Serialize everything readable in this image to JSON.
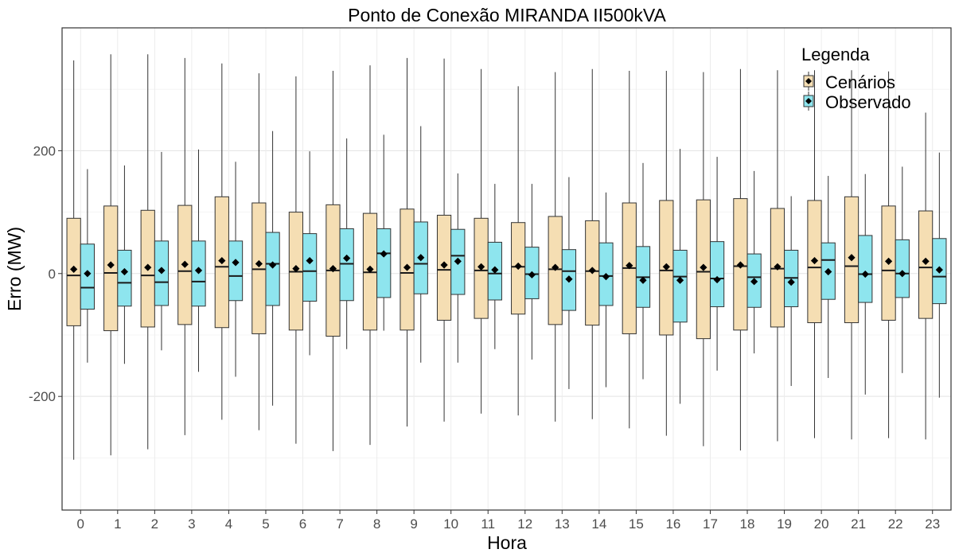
{
  "chart_data": {
    "type": "boxplot",
    "title": "Ponto de Conexão MIRANDA II500kVA",
    "xlabel": "Hora",
    "ylabel": "Erro (MW)",
    "ylim": [
      -385,
      400
    ],
    "yticks": [
      -200,
      0,
      200
    ],
    "grid": true,
    "legend": {
      "title": "Legenda",
      "position": "top-right"
    },
    "categories": [
      "0",
      "1",
      "2",
      "3",
      "4",
      "5",
      "6",
      "7",
      "8",
      "9",
      "10",
      "11",
      "12",
      "13",
      "14",
      "15",
      "16",
      "17",
      "18",
      "19",
      "20",
      "21",
      "22",
      "23"
    ],
    "series": [
      {
        "name": "Cenários",
        "color": "#f5deb3",
        "boxes": [
          {
            "min": -303,
            "q1": -85,
            "median": -3,
            "q3": 90,
            "max": 347,
            "mean": 7
          },
          {
            "min": -296,
            "q1": -93,
            "median": 1,
            "q3": 110,
            "max": 357,
            "mean": 14
          },
          {
            "min": -286,
            "q1": -87,
            "median": -3,
            "q3": 103,
            "max": 357,
            "mean": 10
          },
          {
            "min": -263,
            "q1": -83,
            "median": 4,
            "q3": 111,
            "max": 351,
            "mean": 15
          },
          {
            "min": -238,
            "q1": -88,
            "median": 11,
            "q3": 125,
            "max": 342,
            "mean": 21
          },
          {
            "min": -255,
            "q1": -98,
            "median": 7,
            "q3": 115,
            "max": 326,
            "mean": 16
          },
          {
            "min": -277,
            "q1": -92,
            "median": 3,
            "q3": 100,
            "max": 321,
            "mean": 8
          },
          {
            "min": -289,
            "q1": -102,
            "median": 5,
            "q3": 112,
            "max": 330,
            "mean": 8
          },
          {
            "min": -279,
            "q1": -92,
            "median": 2,
            "q3": 98,
            "max": 339,
            "mean": 7
          },
          {
            "min": -249,
            "q1": -92,
            "median": 1,
            "q3": 105,
            "max": 351,
            "mean": 10
          },
          {
            "min": -241,
            "q1": -76,
            "median": 6,
            "q3": 95,
            "max": 350,
            "mean": 14
          },
          {
            "min": -228,
            "q1": -73,
            "median": 5,
            "q3": 90,
            "max": 333,
            "mean": 11
          },
          {
            "min": -231,
            "q1": -66,
            "median": 11,
            "q3": 83,
            "max": 305,
            "mean": 12
          },
          {
            "min": -241,
            "q1": -83,
            "median": 7,
            "q3": 93,
            "max": 328,
            "mean": 10
          },
          {
            "min": -237,
            "q1": -84,
            "median": 4,
            "q3": 86,
            "max": 333,
            "mean": 5
          },
          {
            "min": -252,
            "q1": -98,
            "median": 9,
            "q3": 115,
            "max": 330,
            "mean": 13
          },
          {
            "min": -264,
            "q1": -100,
            "median": 5,
            "q3": 119,
            "max": 330,
            "mean": 11
          },
          {
            "min": -281,
            "q1": -106,
            "median": 3,
            "q3": 120,
            "max": 328,
            "mean": 10
          },
          {
            "min": -288,
            "q1": -92,
            "median": 12,
            "q3": 122,
            "max": 333,
            "mean": 14
          },
          {
            "min": -273,
            "q1": -87,
            "median": 8,
            "q3": 106,
            "max": 331,
            "mean": 11
          },
          {
            "min": -268,
            "q1": -80,
            "median": 10,
            "q3": 119,
            "max": 331,
            "mean": 21
          },
          {
            "min": -270,
            "q1": -80,
            "median": 12,
            "q3": 125,
            "max": 331,
            "mean": 26
          },
          {
            "min": -268,
            "q1": -76,
            "median": 5,
            "q3": 110,
            "max": 329,
            "mean": 20
          },
          {
            "min": -270,
            "q1": -73,
            "median": 10,
            "q3": 102,
            "max": 262,
            "mean": 20
          }
        ]
      },
      {
        "name": "Observado",
        "color": "#8ee5ee",
        "boxes": [
          {
            "min": -145,
            "q1": -58,
            "median": -23,
            "q3": 48,
            "max": 170,
            "mean": 0
          },
          {
            "min": -147,
            "q1": -53,
            "median": -15,
            "q3": 38,
            "max": 176,
            "mean": 3
          },
          {
            "min": -125,
            "q1": -52,
            "median": -14,
            "q3": 53,
            "max": 198,
            "mean": 5
          },
          {
            "min": -160,
            "q1": -53,
            "median": -13,
            "q3": 53,
            "max": 202,
            "mean": 5
          },
          {
            "min": -168,
            "q1": -44,
            "median": -4,
            "q3": 53,
            "max": 182,
            "mean": 18
          },
          {
            "min": -215,
            "q1": -52,
            "median": 16,
            "q3": 67,
            "max": 232,
            "mean": 14
          },
          {
            "min": -133,
            "q1": -45,
            "median": 4,
            "q3": 65,
            "max": 199,
            "mean": 21
          },
          {
            "min": -123,
            "q1": -44,
            "median": 16,
            "q3": 73,
            "max": 220,
            "mean": 25
          },
          {
            "min": -93,
            "q1": -39,
            "median": 33,
            "q3": 73,
            "max": 226,
            "mean": 32
          },
          {
            "min": -145,
            "q1": -33,
            "median": 16,
            "q3": 84,
            "max": 240,
            "mean": 26
          },
          {
            "min": -145,
            "q1": -34,
            "median": 29,
            "q3": 72,
            "max": 163,
            "mean": 20
          },
          {
            "min": -123,
            "q1": -43,
            "median": 0,
            "q3": 51,
            "max": 146,
            "mean": 6
          },
          {
            "min": -140,
            "q1": -41,
            "median": -1,
            "q3": 43,
            "max": 146,
            "mean": -2
          },
          {
            "min": -188,
            "q1": -60,
            "median": 4,
            "q3": 39,
            "max": 157,
            "mean": -9
          },
          {
            "min": -185,
            "q1": -52,
            "median": -4,
            "q3": 50,
            "max": 132,
            "mean": -5
          },
          {
            "min": -172,
            "q1": -55,
            "median": -6,
            "q3": 44,
            "max": 180,
            "mean": -11
          },
          {
            "min": -212,
            "q1": -79,
            "median": -5,
            "q3": 38,
            "max": 203,
            "mean": -11
          },
          {
            "min": -158,
            "q1": -54,
            "median": -8,
            "q3": 52,
            "max": 190,
            "mean": -10
          },
          {
            "min": -130,
            "q1": -55,
            "median": -6,
            "q3": 32,
            "max": 167,
            "mean": -13
          },
          {
            "min": -183,
            "q1": -54,
            "median": -7,
            "q3": 38,
            "max": 126,
            "mean": -14
          },
          {
            "min": -170,
            "q1": -42,
            "median": 22,
            "q3": 50,
            "max": 159,
            "mean": 3
          },
          {
            "min": -197,
            "q1": -47,
            "median": -1,
            "q3": 62,
            "max": 162,
            "mean": -1
          },
          {
            "min": -162,
            "q1": -39,
            "median": 0,
            "q3": 55,
            "max": 174,
            "mean": 0
          },
          {
            "min": -202,
            "q1": -49,
            "median": -5,
            "q3": 57,
            "max": 197,
            "mean": 6
          }
        ]
      }
    ]
  }
}
